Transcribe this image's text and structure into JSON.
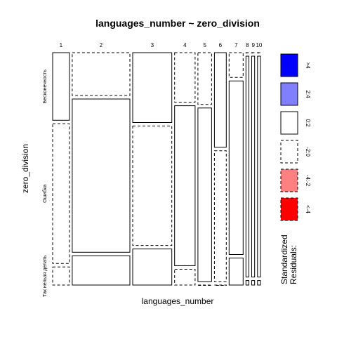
{
  "chart_data": {
    "type": "mosaic",
    "title": "languages_number ~ zero_division",
    "xlabel": "languages_number",
    "ylabel": "zero_division",
    "x_categories": [
      "1",
      "2",
      "3",
      "4",
      "5",
      "6",
      "7",
      "8",
      "9",
      "10"
    ],
    "y_categories": [
      "Бесконечность",
      "Ошибка",
      "Так нельзя делать"
    ],
    "column_widths": [
      0.0435,
      0.1495,
      0.1015,
      0.0532,
      0.0355,
      0.0307,
      0.0365,
      0.0077,
      0.0077,
      0.0077
    ],
    "proportions": [
      [
        0.3,
        0.62,
        0.08
      ],
      [
        0.19,
        0.68,
        0.13
      ],
      [
        0.31,
        0.53,
        0.16
      ],
      [
        0.22,
        0.71,
        0.07
      ],
      [
        0.23,
        0.77,
        0.0
      ],
      [
        0.42,
        0.58,
        0.0
      ],
      [
        0.11,
        0.77,
        0.12
      ],
      [
        0.0,
        0.98,
        0.02
      ],
      [
        0.0,
        0.98,
        0.02
      ],
      [
        0.0,
        0.98,
        0.02
      ]
    ],
    "residual_style": [
      [
        "solid",
        "dashed",
        "dashed"
      ],
      [
        "dashed",
        "solid",
        "solid"
      ],
      [
        "solid",
        "dashed",
        "solid"
      ],
      [
        "dashed",
        "solid",
        "dashed"
      ],
      [
        "dashed",
        "solid",
        "dashed"
      ],
      [
        "solid",
        "dashed",
        "dashed"
      ],
      [
        "dashed",
        "solid",
        "solid"
      ],
      [
        "dashed",
        "solid",
        "solid"
      ],
      [
        "dashed",
        "solid",
        "solid"
      ],
      [
        "dashed",
        "solid",
        "solid"
      ]
    ],
    "legend": {
      "title_line1": "Standardized",
      "title_line2": "Residuals:",
      "items": [
        {
          "label": ">4",
          "fill": "#0000ff",
          "style": "solid"
        },
        {
          "label": "2:4",
          "fill": "#8080ff",
          "style": "solid"
        },
        {
          "label": "0:2",
          "fill": "#ffffff",
          "style": "solid"
        },
        {
          "label": "-2:0",
          "fill": "#ffffff",
          "style": "dashed"
        },
        {
          "label": "-4:-2",
          "fill": "#ff8080",
          "style": "dashed"
        },
        {
          "label": "<-4",
          "fill": "#ff0000",
          "style": "dashed"
        }
      ]
    }
  }
}
